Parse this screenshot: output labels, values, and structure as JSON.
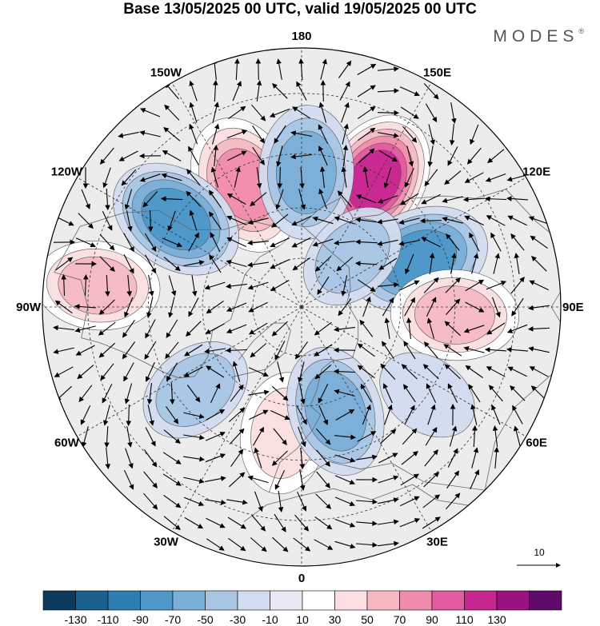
{
  "title": "Base 13/05/2025 00 UTC, valid 19/05/2025 00 UTC",
  "brand": "MODES",
  "brand_mark": "®",
  "map": {
    "projection": "north-polar-stereographic",
    "longitude_labels": [
      {
        "text": "180",
        "lon": 180
      },
      {
        "text": "150E",
        "lon": 150
      },
      {
        "text": "120E",
        "lon": 120
      },
      {
        "text": "90E",
        "lon": 90
      },
      {
        "text": "60E",
        "lon": 60
      },
      {
        "text": "30E",
        "lon": 30
      },
      {
        "text": "0",
        "lon": 0
      },
      {
        "text": "30W",
        "lon": -30
      },
      {
        "text": "60W",
        "lon": -60
      },
      {
        "text": "90W",
        "lon": -90
      },
      {
        "text": "120W",
        "lon": -120
      },
      {
        "text": "150W",
        "lon": -150
      }
    ],
    "anomaly_centers": [
      {
        "lon": 150,
        "lat": 47,
        "value": 120
      },
      {
        "lon": -155,
        "lat": 50,
        "value": 85
      },
      {
        "lon": 178,
        "lat": 50,
        "value": -70
      },
      {
        "lon": -125,
        "lat": 45,
        "value": -75
      },
      {
        "lon": 112,
        "lat": 52,
        "value": -80
      },
      {
        "lon": -96,
        "lat": 32,
        "value": 55
      },
      {
        "lon": 87,
        "lat": 45,
        "value": 60
      },
      {
        "lon": 55,
        "lat": 45,
        "value": -20
      },
      {
        "lon": -8,
        "lat": 52,
        "value": 50
      },
      {
        "lon": 18,
        "lat": 57,
        "value": -65
      },
      {
        "lon": -52,
        "lat": 50,
        "value": -40
      },
      {
        "lon": 135,
        "lat": 68,
        "value": -35
      }
    ]
  },
  "vector_reference": {
    "label": "10"
  },
  "colorbar": {
    "colors": [
      "#0b3a5e",
      "#1a5f8e",
      "#2e7db3",
      "#4d97c9",
      "#7aafd8",
      "#a8c5e4",
      "#d2dcef",
      "#eae8f4",
      "#ffffff",
      "#fbdedf",
      "#f6b9c3",
      "#f08cab",
      "#e35aa0",
      "#c7268f",
      "#9a1280",
      "#5e0b69"
    ],
    "ticks": [
      "-130",
      "-110",
      "-90",
      "-70",
      "-50",
      "-30",
      "-10",
      "10",
      "30",
      "50",
      "70",
      "90",
      "110",
      "130"
    ]
  }
}
